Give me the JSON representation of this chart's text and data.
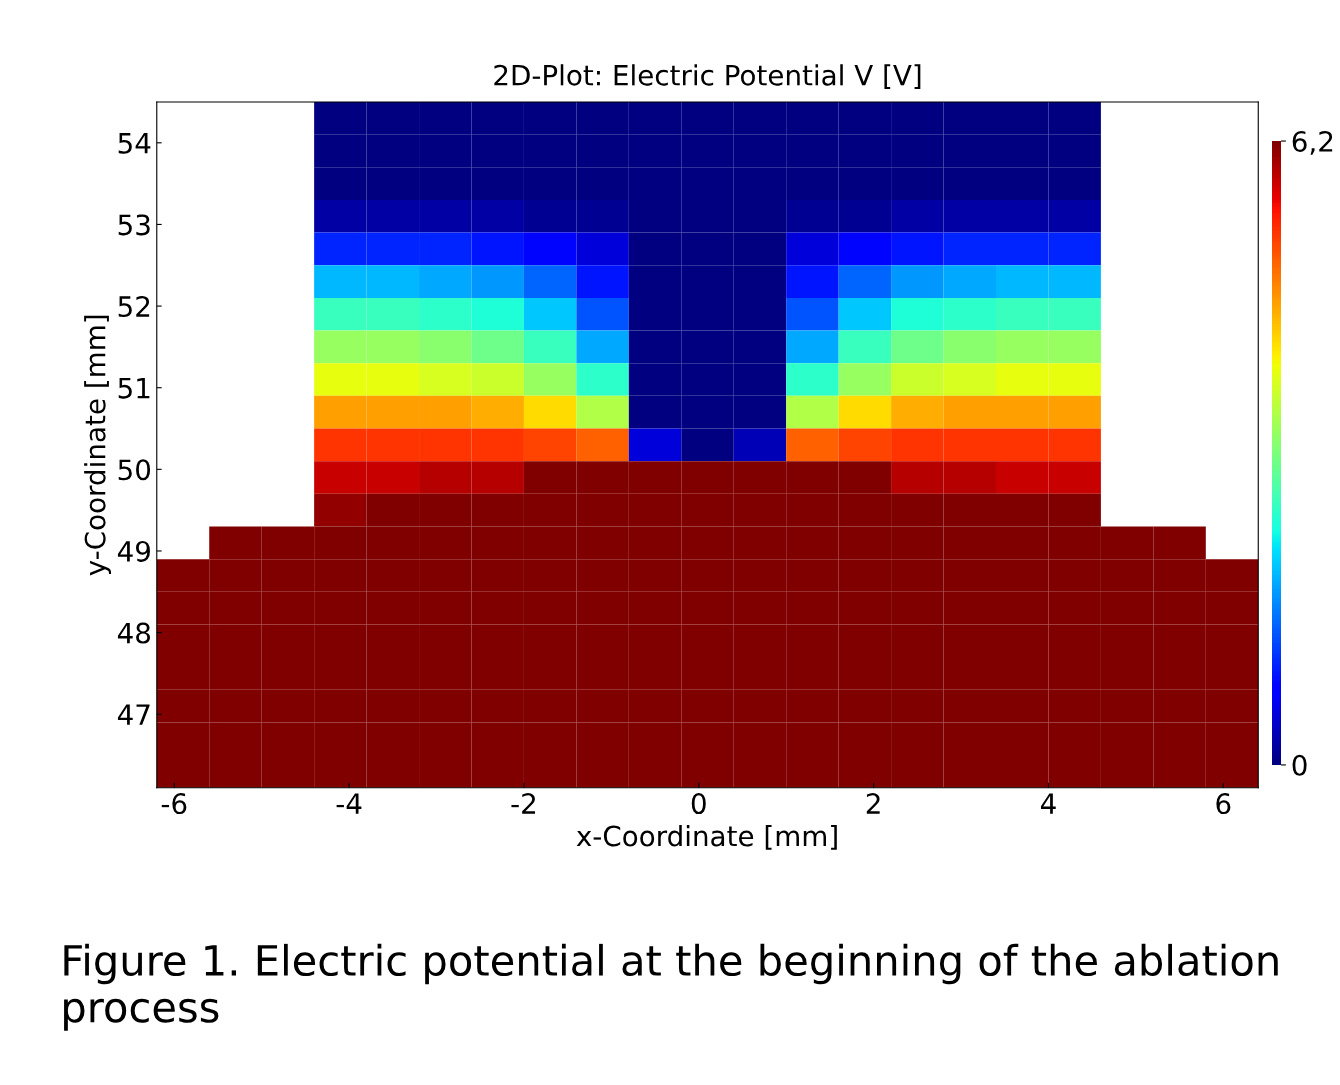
{
  "chart_data": {
    "type": "heatmap",
    "title": "2D-Plot: Electric Potential V [V]",
    "xlabel": "x-Coordinate [mm]",
    "ylabel": "y-Coordinate [mm]",
    "annotations": [
      "Figure 1. Electric potential at the beginning of the ablation process"
    ],
    "x": [
      -5.9,
      -5.3,
      -4.7,
      -4.1,
      -3.5,
      -2.9,
      -2.3,
      -1.7,
      -1.1,
      -0.5,
      0.1,
      0.7,
      1.3,
      1.9,
      2.5,
      3.1,
      3.7,
      4.3,
      4.9,
      5.5,
      6.1
    ],
    "y": [
      54.3,
      53.9,
      53.5,
      53.1,
      52.7,
      52.3,
      51.9,
      51.5,
      51.1,
      50.7,
      50.3,
      49.9,
      49.5,
      49.1,
      48.7,
      48.3,
      47.9,
      47.5,
      47.1,
      46.7,
      46.3
    ],
    "xlim": [
      -6.2,
      6.4
    ],
    "ylim": [
      46.1,
      54.5
    ],
    "xticks": [
      -6,
      -4,
      -2,
      0,
      2,
      4,
      6
    ],
    "yticks": [
      47,
      48,
      49,
      50,
      51,
      52,
      53,
      54
    ],
    "clim": [
      0,
      6.2
    ],
    "cticks": [
      {
        "value": 6.2,
        "label": "6,2"
      },
      {
        "value": 0,
        "label": "0"
      }
    ],
    "grid": false,
    "cells": [
      [
        null,
        null,
        null,
        0,
        0,
        0,
        0,
        0,
        0,
        0,
        0,
        0,
        0,
        0,
        0,
        0,
        0,
        0,
        null,
        null,
        null
      ],
      [
        null,
        null,
        null,
        0,
        0,
        0,
        0,
        0,
        0,
        0,
        0,
        0,
        0,
        0,
        0,
        0,
        0,
        0,
        null,
        null,
        null
      ],
      [
        null,
        null,
        null,
        0,
        0,
        0,
        0,
        0,
        0,
        0,
        0,
        0,
        0,
        0,
        0,
        0,
        0,
        0,
        null,
        null,
        null
      ],
      [
        null,
        null,
        null,
        0.2,
        0.2,
        0.2,
        0.2,
        0.1,
        0.1,
        0,
        0,
        0,
        0.1,
        0.1,
        0.2,
        0.2,
        0.2,
        0.2,
        null,
        null,
        null
      ],
      [
        null,
        null,
        null,
        1.0,
        1.0,
        1.0,
        0.9,
        0.8,
        0.5,
        0,
        0,
        0,
        0.5,
        0.8,
        0.9,
        1.0,
        1.0,
        1.0,
        null,
        null,
        null
      ],
      [
        null,
        null,
        null,
        1.9,
        1.9,
        1.8,
        1.7,
        1.4,
        0.9,
        0,
        0,
        0,
        0.9,
        1.4,
        1.7,
        1.8,
        1.9,
        1.9,
        null,
        null,
        null
      ],
      [
        null,
        null,
        null,
        2.6,
        2.6,
        2.5,
        2.4,
        2.0,
        1.3,
        0,
        0,
        0,
        1.3,
        2.0,
        2.4,
        2.5,
        2.6,
        2.6,
        null,
        null,
        null
      ],
      [
        null,
        null,
        null,
        3.3,
        3.3,
        3.2,
        3.0,
        2.6,
        1.8,
        0,
        0,
        0,
        1.8,
        2.6,
        3.0,
        3.2,
        3.3,
        3.3,
        null,
        null,
        null
      ],
      [
        null,
        null,
        null,
        3.9,
        3.9,
        3.8,
        3.7,
        3.3,
        2.5,
        0,
        0,
        0,
        2.5,
        3.3,
        3.7,
        3.8,
        3.9,
        3.9,
        null,
        null,
        null
      ],
      [
        null,
        null,
        null,
        4.6,
        4.6,
        4.6,
        4.5,
        4.2,
        3.5,
        0,
        0,
        0,
        3.5,
        4.2,
        4.5,
        4.6,
        4.6,
        4.6,
        null,
        null,
        null
      ],
      [
        null,
        null,
        null,
        5.3,
        5.3,
        5.3,
        5.3,
        5.2,
        5.0,
        0.5,
        0,
        0.3,
        5.0,
        5.2,
        5.3,
        5.3,
        5.3,
        5.3,
        null,
        null,
        null
      ],
      [
        null,
        null,
        null,
        5.8,
        5.8,
        5.9,
        5.9,
        6.2,
        6.2,
        6.2,
        6.2,
        6.2,
        6.2,
        6.2,
        5.9,
        5.9,
        5.8,
        5.8,
        null,
        null,
        null
      ],
      [
        null,
        null,
        null,
        6.1,
        6.2,
        6.2,
        6.2,
        6.2,
        6.2,
        6.2,
        6.2,
        6.2,
        6.2,
        6.2,
        6.2,
        6.2,
        6.2,
        6.2,
        null,
        null,
        null
      ],
      [
        null,
        6.2,
        6.2,
        6.2,
        6.2,
        6.2,
        6.2,
        6.2,
        6.2,
        6.2,
        6.2,
        6.2,
        6.2,
        6.2,
        6.2,
        6.2,
        6.2,
        6.2,
        6.2,
        6.2,
        null
      ],
      [
        6.2,
        6.2,
        6.2,
        6.2,
        6.2,
        6.2,
        6.2,
        6.2,
        6.2,
        6.2,
        6.2,
        6.2,
        6.2,
        6.2,
        6.2,
        6.2,
        6.2,
        6.2,
        6.2,
        6.2,
        6.2
      ],
      [
        6.2,
        6.2,
        6.2,
        6.2,
        6.2,
        6.2,
        6.2,
        6.2,
        6.2,
        6.2,
        6.2,
        6.2,
        6.2,
        6.2,
        6.2,
        6.2,
        6.2,
        6.2,
        6.2,
        6.2,
        6.2
      ],
      [
        6.2,
        6.2,
        6.2,
        6.2,
        6.2,
        6.2,
        6.2,
        6.2,
        6.2,
        6.2,
        6.2,
        6.2,
        6.2,
        6.2,
        6.2,
        6.2,
        6.2,
        6.2,
        6.2,
        6.2,
        6.2
      ],
      [
        6.2,
        6.2,
        6.2,
        6.2,
        6.2,
        6.2,
        6.2,
        6.2,
        6.2,
        6.2,
        6.2,
        6.2,
        6.2,
        6.2,
        6.2,
        6.2,
        6.2,
        6.2,
        6.2,
        6.2,
        6.2
      ],
      [
        6.2,
        6.2,
        6.2,
        6.2,
        6.2,
        6.2,
        6.2,
        6.2,
        6.2,
        6.2,
        6.2,
        6.2,
        6.2,
        6.2,
        6.2,
        6.2,
        6.2,
        6.2,
        6.2,
        6.2,
        6.2
      ],
      [
        6.2,
        6.2,
        6.2,
        6.2,
        6.2,
        6.2,
        6.2,
        6.2,
        6.2,
        6.2,
        6.2,
        6.2,
        6.2,
        6.2,
        6.2,
        6.2,
        6.2,
        6.2,
        6.2,
        6.2,
        6.2
      ],
      [
        6.2,
        6.2,
        6.2,
        6.2,
        6.2,
        6.2,
        6.2,
        6.2,
        6.2,
        6.2,
        6.2,
        6.2,
        6.2,
        6.2,
        6.2,
        6.2,
        6.2,
        6.2,
        6.2,
        6.2,
        6.2
      ]
    ]
  }
}
